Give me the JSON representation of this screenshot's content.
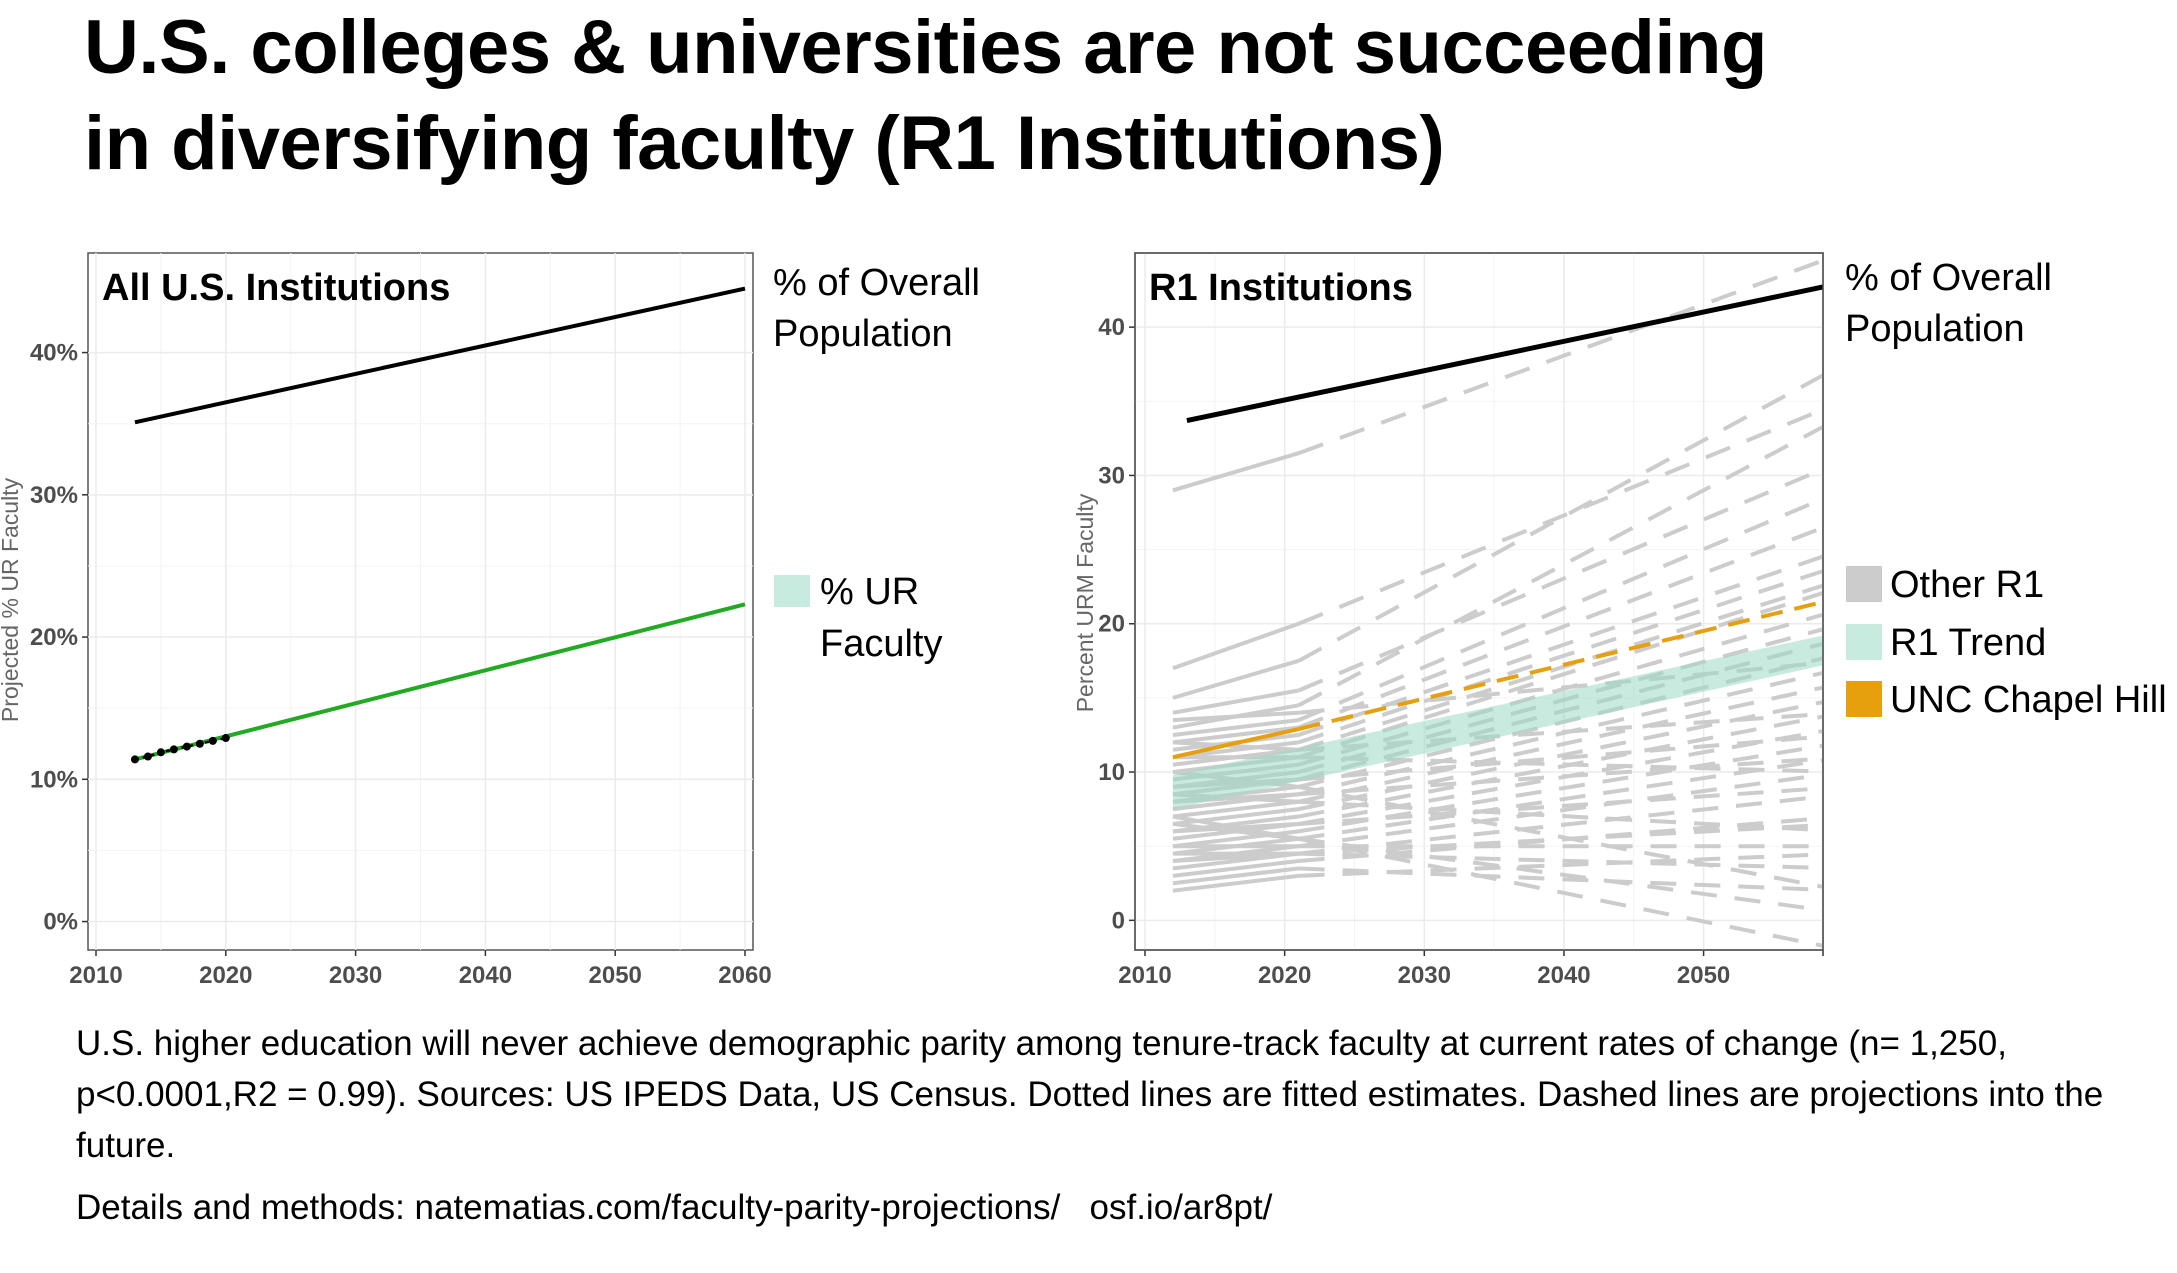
{
  "title": {
    "line1": "U.S. colleges & universities are not succeeding",
    "line2": "in diversifying faculty (R1 Institutions)"
  },
  "caption": {
    "text": "U.S. higher education will never achieve demographic parity among tenure-track faculty at current rates of change (n= 1,250, p<0.0001,R2 = 0.99). Sources: US IPEDS Data, US Census. Dotted lines are fitted estimates. Dashed lines are projections into the future."
  },
  "details": {
    "label": "Details and methods: ",
    "link1": "natematias.com/faculty-parity-projections/",
    "link2": "osf.io/ar8pt/"
  },
  "colors": {
    "population": "#000000",
    "ur_faculty_line": "#22aa22",
    "r1_trend": "#c8ebe0",
    "other_r1": "#cccccc",
    "unc": "#e6a00e"
  },
  "chart_data": [
    {
      "type": "line",
      "panel_title": "All U.S. Institutions",
      "ylabel": "Projected % UR Faculty",
      "xlabel": "",
      "xlim": [
        2010,
        2060
      ],
      "ylim": [
        -2,
        47
      ],
      "x_ticks": [
        2010,
        2020,
        2030,
        2040,
        2050,
        2060
      ],
      "x_tick_labels": [
        "2010",
        "2020",
        "2030",
        "2040",
        "2050",
        "2060"
      ],
      "y_ticks": [
        0,
        10,
        20,
        30,
        40
      ],
      "y_tick_labels": [
        "0%",
        "10%",
        "20%",
        "30%",
        "40%"
      ],
      "grid": true,
      "series": [
        {
          "name": "% of Overall Population",
          "x": [
            2013,
            2060
          ],
          "y": [
            35.1,
            44.5
          ]
        },
        {
          "name": "% UR Faculty",
          "x": [
            2013,
            2060
          ],
          "y": [
            11.4,
            22.3
          ]
        },
        {
          "name": "Fitted estimates",
          "x": [
            2013,
            2014,
            2015,
            2016,
            2017,
            2018,
            2019,
            2020
          ],
          "y": [
            11.4,
            11.6,
            11.9,
            12.1,
            12.3,
            12.5,
            12.7,
            12.9
          ]
        }
      ],
      "legend": [
        "% of Overall Population",
        "% UR Faculty"
      ],
      "legend_position": "right"
    },
    {
      "type": "line",
      "panel_title": "R1 Institutions",
      "ylabel": "Percent URM Faculty",
      "xlabel": "",
      "xlim": [
        2010,
        2060
      ],
      "ylim": [
        -2,
        45
      ],
      "x_ticks": [
        2010,
        2020,
        2030,
        2040,
        2050
      ],
      "x_tick_labels": [
        "2010",
        "2020",
        "2030",
        "2040",
        "2050"
      ],
      "y_ticks": [
        0,
        10,
        20,
        30,
        40
      ],
      "y_tick_labels": [
        "0",
        "10",
        "20",
        "30",
        "40"
      ],
      "grid": true,
      "series": [
        {
          "name": "% of Overall Population",
          "x": [
            2013,
            2060
          ],
          "y": [
            33.7,
            43.0
          ]
        },
        {
          "name": "R1 Trend",
          "x": [
            2012,
            2060
          ],
          "y_low": [
            7.5,
            17.5
          ],
          "y_high": [
            9.8,
            19.5
          ]
        },
        {
          "name": "UNC Chapel Hill",
          "observed": {
            "x": [
              2012,
              2021
            ],
            "y": [
              11.0,
              12.9
            ]
          },
          "projected": {
            "x": [
              2021,
              2060
            ],
            "y": [
              12.9,
              21.8
            ]
          }
        },
        {
          "name": "Other R1",
          "observed_start_x": 2012,
          "observed_end_x": 2021,
          "projected_end_x": 2060,
          "lines": [
            [
              29.0,
              31.5,
              45.0
            ],
            [
              17.0,
              20.0,
              35.0
            ],
            [
              15.0,
              17.5,
              37.5
            ],
            [
              14.0,
              15.5,
              31.0
            ],
            [
              13.0,
              14.5,
              34.0
            ],
            [
              12.5,
              13.5,
              29.0
            ],
            [
              12.0,
              13.0,
              27.0
            ],
            [
              11.5,
              12.5,
              25.0
            ],
            [
              11.0,
              12.0,
              24.0
            ],
            [
              10.5,
              11.5,
              23.0
            ],
            [
              10.0,
              11.0,
              22.5
            ],
            [
              9.5,
              10.5,
              21.0
            ],
            [
              9.0,
              10.0,
              20.0
            ],
            [
              8.5,
              9.5,
              19.0
            ],
            [
              8.0,
              9.0,
              18.0
            ],
            [
              7.5,
              8.5,
              17.0
            ],
            [
              7.0,
              8.0,
              16.0
            ],
            [
              6.5,
              7.5,
              15.0
            ],
            [
              6.0,
              7.0,
              14.0
            ],
            [
              5.5,
              6.5,
              13.0
            ],
            [
              5.0,
              6.0,
              12.0
            ],
            [
              4.5,
              5.5,
              11.0
            ],
            [
              4.0,
              5.0,
              10.0
            ],
            [
              3.5,
              4.5,
              8.5
            ],
            [
              3.0,
              4.0,
              7.0
            ],
            [
              5.0,
              5.0,
              5.0
            ],
            [
              4.5,
              4.5,
              3.5
            ],
            [
              2.5,
              3.5,
              2.0
            ],
            [
              6.5,
              5.5,
              0.5
            ],
            [
              10.0,
              9.0,
              2.0
            ],
            [
              7.0,
              5.5,
              -2.0
            ],
            [
              12.0,
              11.5,
              14.0
            ],
            [
              8.0,
              8.5,
              11.0
            ],
            [
              6.0,
              6.5,
              9.0
            ],
            [
              9.0,
              9.5,
              12.5
            ],
            [
              11.0,
              11.0,
              10.0
            ],
            [
              4.0,
              4.5,
              6.5
            ],
            [
              8.5,
              8.0,
              6.0
            ],
            [
              2.0,
              3.0,
              4.5
            ],
            [
              13.5,
              14.0,
              17.5
            ]
          ]
        }
      ],
      "legend": [
        "Other R1",
        "R1 Trend",
        "UNC Chapel Hill"
      ],
      "legend_top_note": "% of Overall Population",
      "legend_position": "right"
    }
  ]
}
